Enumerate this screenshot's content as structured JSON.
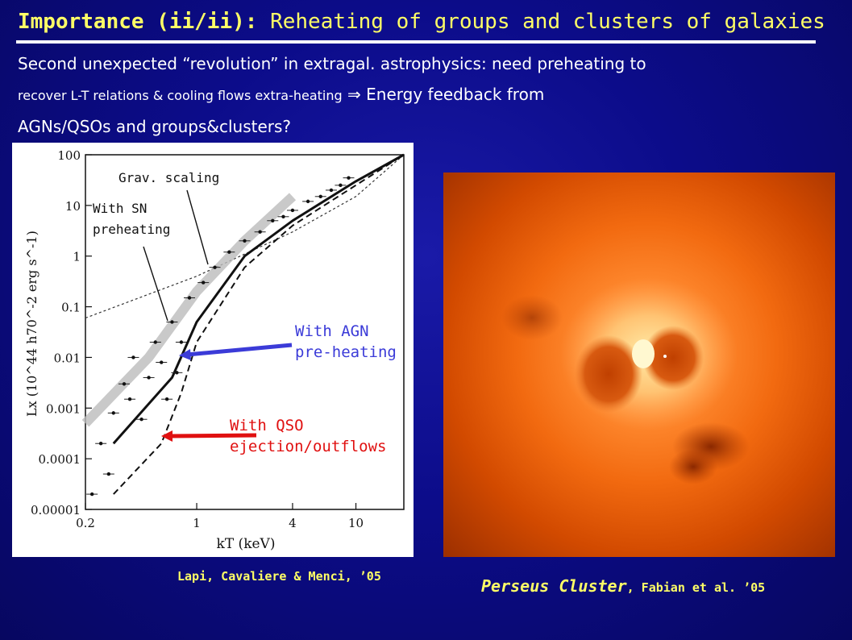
{
  "title": {
    "lead": "Importance (ii/ii):",
    "rest": "Reheating of groups and clusters of galaxies"
  },
  "body": {
    "line1": "Second unexpected “revolution” in extragal. astrophysics: need preheating to",
    "line2_small": "recover L-T relations & cooling flows extra-heating",
    "arrow": "⇒",
    "line2_rest": "Energy feedback from",
    "line3": "AGNs/QSOs and groups&clusters?"
  },
  "figure_left": {
    "caption": "Lapi, Cavaliere & Menci, ’05",
    "annotations": {
      "grav": "Grav. scaling",
      "sn1": "With SN",
      "sn2": "preheating",
      "agn1": "With AGN",
      "agn2": "pre-heating",
      "qso1": "With QSO",
      "qso2": "ejection/outflows"
    },
    "colors": {
      "agn_arrow": "#3b3bd8",
      "qso_arrow": "#e01010"
    }
  },
  "chart_data": {
    "type": "scatter",
    "xlabel": "kT (keV)",
    "ylabel": "Lx (10^44 h70^-2 erg s^-1)",
    "xscale": "log",
    "yscale": "log",
    "xlim": [
      0.2,
      20
    ],
    "ylim": [
      1e-05,
      100
    ],
    "x_ticks": [
      "0.2",
      "1",
      "4",
      "10"
    ],
    "y_ticks": [
      "100",
      "10",
      "1",
      "0.1",
      "0.01",
      "0.001",
      "0.0001",
      "0.00001"
    ],
    "series": [
      {
        "name": "Grav. scaling",
        "x": [
          0.2,
          1,
          4,
          10,
          20
        ],
        "y": [
          0.06,
          0.4,
          3,
          15,
          100
        ]
      },
      {
        "name": "With SN preheating",
        "x": [
          0.2,
          0.5,
          1,
          2,
          4
        ],
        "y": [
          0.0005,
          0.01,
          0.2,
          2,
          15
        ]
      },
      {
        "name": "With AGN pre-heating",
        "x": [
          0.3,
          0.7,
          1,
          2,
          4,
          10,
          20
        ],
        "y": [
          0.0002,
          0.004,
          0.05,
          1,
          5,
          30,
          100
        ]
      },
      {
        "name": "With QSO ejection/outflows",
        "x": [
          0.3,
          0.6,
          0.8,
          1,
          2,
          4,
          10,
          20
        ],
        "y": [
          2e-05,
          0.0002,
          0.002,
          0.02,
          0.6,
          4,
          25,
          100
        ]
      }
    ]
  },
  "figure_right": {
    "caption_main": "Perseus Cluster",
    "caption_sub": ", Fabian et al. ’05"
  }
}
